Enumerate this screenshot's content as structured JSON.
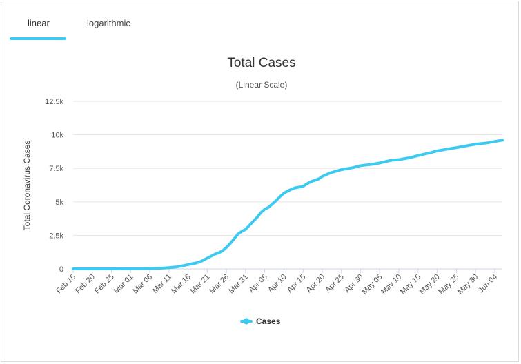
{
  "tabs": [
    {
      "label": "linear",
      "active": true
    },
    {
      "label": "logarithmic",
      "active": false
    }
  ],
  "colors": {
    "accent": "#3ccaf1",
    "series": "#3ccaf1",
    "grid": "#e6e6e6",
    "axis": "#ccd6eb"
  },
  "chart_data": {
    "type": "line",
    "title": "Total Cases",
    "subtitle": "(Linear Scale)",
    "ylabel": "Total Coronavirus Cases",
    "xlabel": "",
    "ylim": [
      0,
      12500
    ],
    "yticks": [
      0,
      2500,
      5000,
      7500,
      10000,
      12500
    ],
    "ytick_labels": [
      "0",
      "2.5k",
      "5k",
      "7.5k",
      "10k",
      "12.5k"
    ],
    "xtick_labels": [
      "Feb 15",
      "Feb 20",
      "Feb 25",
      "Mar 01",
      "Mar 06",
      "Mar 11",
      "Mar 16",
      "Mar 21",
      "Mar 26",
      "Mar 31",
      "Apr 05",
      "Apr 10",
      "Apr 15",
      "Apr 20",
      "Apr 25",
      "Apr 30",
      "May 05",
      "May 10",
      "May 15",
      "May 20",
      "May 25",
      "May 30",
      "Jun 04"
    ],
    "grid": true,
    "legend_position": "bottom-center",
    "series": [
      {
        "name": "Cases",
        "x": [
          "Feb 15",
          "Feb 20",
          "Feb 25",
          "Mar 01",
          "Mar 06",
          "Mar 09",
          "Mar 11",
          "Mar 13",
          "Mar 15",
          "Mar 16",
          "Mar 17",
          "Mar 18",
          "Mar 19",
          "Mar 20",
          "Mar 21",
          "Mar 22",
          "Mar 23",
          "Mar 24",
          "Mar 25",
          "Mar 26",
          "Mar 27",
          "Mar 28",
          "Mar 29",
          "Mar 30",
          "Mar 31",
          "Apr 01",
          "Apr 02",
          "Apr 03",
          "Apr 04",
          "Apr 05",
          "Apr 06",
          "Apr 07",
          "Apr 08",
          "Apr 09",
          "Apr 10",
          "Apr 11",
          "Apr 12",
          "Apr 13",
          "Apr 14",
          "Apr 15",
          "Apr 16",
          "Apr 17",
          "Apr 18",
          "Apr 19",
          "Apr 20",
          "Apr 22",
          "Apr 25",
          "Apr 28",
          "Apr 30",
          "May 03",
          "May 05",
          "May 08",
          "May 10",
          "May 13",
          "May 15",
          "May 18",
          "May 20",
          "May 23",
          "May 25",
          "May 28",
          "May 30",
          "Jun 02",
          "Jun 04",
          "Jun 06"
        ],
        "values": [
          0,
          0,
          0,
          10,
          20,
          50,
          90,
          150,
          250,
          320,
          380,
          430,
          520,
          650,
          800,
          950,
          1100,
          1200,
          1350,
          1600,
          1900,
          2250,
          2600,
          2800,
          2950,
          3250,
          3550,
          3850,
          4200,
          4450,
          4600,
          4850,
          5100,
          5400,
          5650,
          5800,
          5950,
          6050,
          6100,
          6150,
          6350,
          6500,
          6600,
          6700,
          6900,
          7150,
          7400,
          7550,
          7700,
          7800,
          7900,
          8100,
          8150,
          8300,
          8450,
          8650,
          8800,
          8950,
          9050,
          9200,
          9300,
          9400,
          9500,
          9600
        ]
      }
    ]
  }
}
